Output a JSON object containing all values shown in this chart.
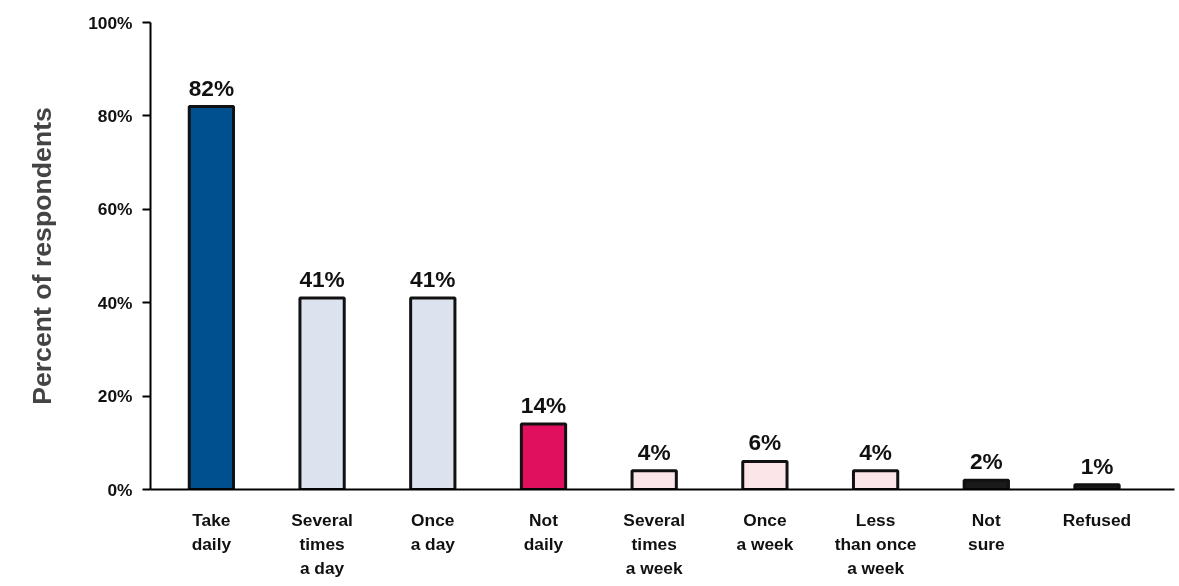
{
  "chart_data": {
    "type": "bar",
    "ylabel": "Percent of respondents",
    "categories": [
      "Take\ndaily",
      "Several\ntimes\na day",
      "Once\na day",
      "Not\ndaily",
      "Several\ntimes\na week",
      "Once\na week",
      "Less\nthan once\na week",
      "Not\nsure",
      "Refused"
    ],
    "values": [
      82,
      41,
      41,
      14,
      4,
      6,
      4,
      2,
      1
    ],
    "colors": [
      "#00508f",
      "#dde3ee",
      "#dde3ee",
      "#e0105e",
      "#fbe5e8",
      "#fbe5e8",
      "#fbe5e8",
      "#1a1a1a",
      "#1a1a1a"
    ],
    "value_labels": [
      "82%",
      "41%",
      "41%",
      "14%",
      "4%",
      "6%",
      "4%",
      "2%",
      "1%"
    ],
    "ylim": [
      0,
      100
    ],
    "yticks": [
      {
        "value": 0,
        "label": "0%"
      },
      {
        "value": 20,
        "label": "20%"
      },
      {
        "value": 40,
        "label": "40%"
      },
      {
        "value": 60,
        "label": "60%"
      },
      {
        "value": 80,
        "label": "80%"
      },
      {
        "value": 100,
        "label": "100%"
      }
    ],
    "grid": false
  }
}
